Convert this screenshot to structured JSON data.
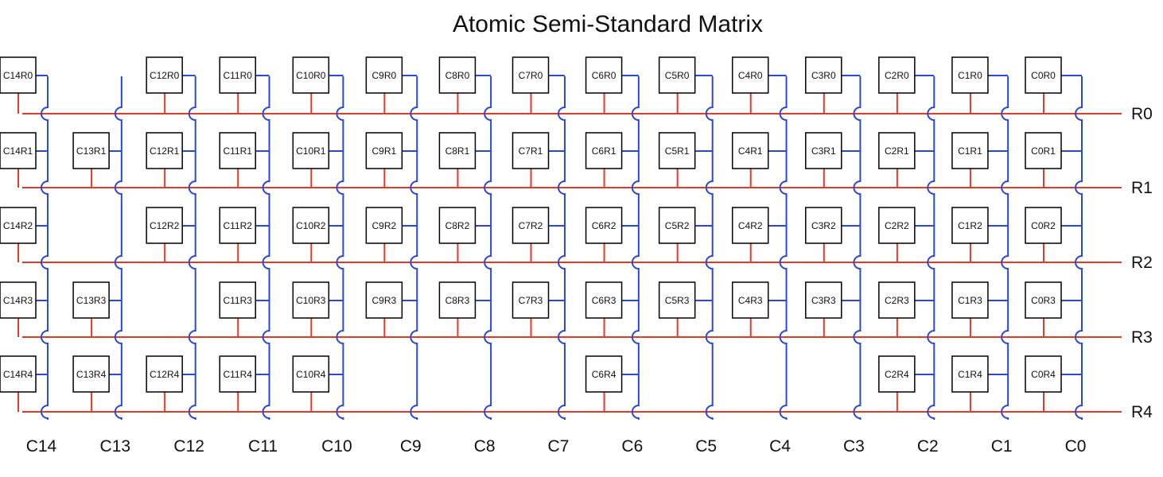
{
  "title": "Atomic Semi-Standard Matrix",
  "colors": {
    "row_wire": "#e23a2a",
    "col_wire": "#2a47d6",
    "key_border": "#000000",
    "text": "#111111"
  },
  "rows": [
    "R0",
    "R1",
    "R2",
    "R3",
    "R4"
  ],
  "columns": [
    "C14",
    "C13",
    "C12",
    "C11",
    "C10",
    "C9",
    "C8",
    "C7",
    "C6",
    "C5",
    "C4",
    "C3",
    "C2",
    "C1",
    "C0"
  ],
  "keys": [
    "C14R0",
    "C12R0",
    "C11R0",
    "C10R0",
    "C9R0",
    "C8R0",
    "C7R0",
    "C6R0",
    "C5R0",
    "C4R0",
    "C3R0",
    "C2R0",
    "C1R0",
    "C0R0",
    "C14R1",
    "C13R1",
    "C12R1",
    "C11R1",
    "C10R1",
    "C9R1",
    "C8R1",
    "C7R1",
    "C6R1",
    "C5R1",
    "C4R1",
    "C3R1",
    "C2R1",
    "C1R1",
    "C0R1",
    "C14R2",
    "C12R2",
    "C11R2",
    "C10R2",
    "C9R2",
    "C8R2",
    "C7R2",
    "C6R2",
    "C5R2",
    "C4R2",
    "C3R2",
    "C2R2",
    "C1R2",
    "C0R2",
    "C14R3",
    "C13R3",
    "C11R3",
    "C10R3",
    "C9R3",
    "C8R3",
    "C7R3",
    "C6R3",
    "C5R3",
    "C4R3",
    "C3R3",
    "C2R3",
    "C1R3",
    "C0R3",
    "C14R4",
    "C13R4",
    "C12R4",
    "C11R4",
    "C10R4",
    "C6R4",
    "C2R4",
    "C1R4",
    "C0R4"
  ]
}
